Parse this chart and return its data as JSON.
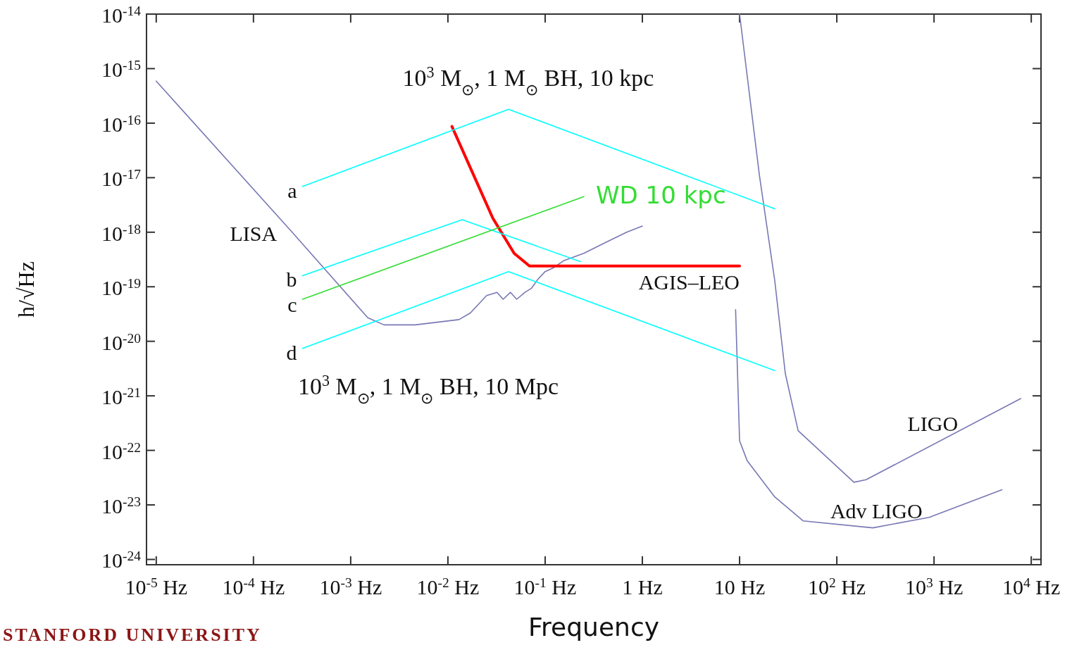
{
  "chart_data": {
    "type": "line",
    "xlabel": "Frequency",
    "ylabel": "h/√Hz",
    "log": "xy",
    "grid": false,
    "marker": "none",
    "line_style": "solid",
    "xlim": [
      7.94e-06,
      12600.0
    ],
    "ylim": [
      8e-25,
      1e-14
    ],
    "xticks": [
      {
        "value": 1e-05,
        "label": "10$^{-5}$ Hz"
      },
      {
        "value": 0.0001,
        "label": "10$^{-4}$ Hz"
      },
      {
        "value": 0.001,
        "label": "10$^{-3}$ Hz"
      },
      {
        "value": 0.01,
        "label": "10$^{-2}$ Hz"
      },
      {
        "value": 0.1,
        "label": "10$^{-1}$ Hz"
      },
      {
        "value": 1,
        "label": "1 Hz"
      },
      {
        "value": 10,
        "label": "10 Hz"
      },
      {
        "value": 100,
        "label": "10$^{2}$ Hz"
      },
      {
        "value": 1000,
        "label": "10$^{3}$ Hz"
      },
      {
        "value": 10000,
        "label": "10$^{4}$ Hz"
      }
    ],
    "yticks": [
      {
        "value": 1e-14,
        "label": "10$^{-14}$"
      },
      {
        "value": 1e-15,
        "label": "10$^{-15}$"
      },
      {
        "value": 1e-16,
        "label": "10$^{-16}$"
      },
      {
        "value": 1e-17,
        "label": "10$^{-17}$"
      },
      {
        "value": 1e-18,
        "label": "10$^{-18}$"
      },
      {
        "value": 1e-19,
        "label": "10$^{-19}$"
      },
      {
        "value": 1e-20,
        "label": "10$^{-20}$"
      },
      {
        "value": 1e-21,
        "label": "10$^{-21}$"
      },
      {
        "value": 1e-22,
        "label": "10$^{-22}$"
      },
      {
        "value": 1e-23,
        "label": "10$^{-23}$"
      },
      {
        "value": 1e-24,
        "label": "10$^{-24}$"
      }
    ],
    "series": [
      {
        "name": "LISA",
        "color": "#7878b4",
        "x": [
          1e-05,
          0.00025,
          0.0015,
          0.0022,
          0.0046,
          0.013,
          0.017,
          0.025,
          0.032,
          0.037,
          0.044,
          0.051,
          0.062,
          0.072,
          0.085,
          0.1,
          0.12,
          0.155,
          0.25,
          0.42,
          0.69,
          1
        ],
        "values": [
          5.9e-16,
          1e-18,
          2.7e-20,
          2e-20,
          2e-20,
          2.5e-20,
          3.3e-20,
          6.9e-20,
          7.9e-20,
          5.9e-20,
          7.9e-20,
          5.9e-20,
          7.9e-20,
          9.3e-20,
          1.4e-19,
          1.9e-19,
          2.2e-19,
          3e-19,
          4.1e-19,
          6.5e-19,
          1e-18,
          1.3e-18
        ]
      },
      {
        "name": "LIGO",
        "color": "#7878b4",
        "x": [
          10,
          16,
          23,
          29.5,
          40,
          150,
          200,
          7800
        ],
        "values": [
          1e-14,
          1.1e-17,
          1.3e-19,
          2.6e-21,
          2.3e-22,
          2.6e-23,
          2.9e-23,
          8.9e-22
        ]
      },
      {
        "name": "Adv LIGO",
        "color": "#7878b4",
        "x": [
          9.1,
          10,
          12,
          23,
          45,
          235,
          890,
          5000
        ],
        "values": [
          3.8e-20,
          1.5e-22,
          6.4e-23,
          1.4e-23,
          5.1e-24,
          3.8e-24,
          5.9e-24,
          1.9e-23
        ]
      },
      {
        "name": "AGIS–LEO",
        "color": "#ff0000",
        "x": [
          0.011,
          0.029,
          0.048,
          0.069,
          10
        ],
        "values": [
          8.7e-17,
          1.8e-18,
          4.1e-19,
          2.4e-19,
          2.4e-19
        ]
      },
      {
        "name": "a",
        "color": "#00ffff",
        "x": [
          0.00032,
          0.042,
          23
        ],
        "values": [
          6.9e-18,
          1.8e-16,
          2.7e-18
        ]
      },
      {
        "name": "b",
        "color": "#00ffff",
        "x": [
          0.00032,
          0.014,
          0.23
        ],
        "values": [
          1.6e-19,
          1.7e-18,
          2.9e-19
        ]
      },
      {
        "name": "c",
        "color": "#33dd33",
        "x": [
          0.00032,
          0.25
        ],
        "values": [
          5.9e-20,
          4.5e-18
        ]
      },
      {
        "name": "d",
        "color": "#00ffff",
        "x": [
          0.00032,
          0.042,
          23
        ],
        "values": [
          7.4e-21,
          1.9e-19,
          2.9e-21
        ]
      }
    ],
    "annotations": [
      "10$^{3}$ M$_{⊙}$, 1 M$_{⊙}$ BH, 10 kpc",
      "10$^{3}$ M$_{⊙}$, 1 M$_{⊙}$ BH, 10 Mpc",
      "WD 10 kpc",
      "STANFORD UNIVERSITY"
    ]
  }
}
